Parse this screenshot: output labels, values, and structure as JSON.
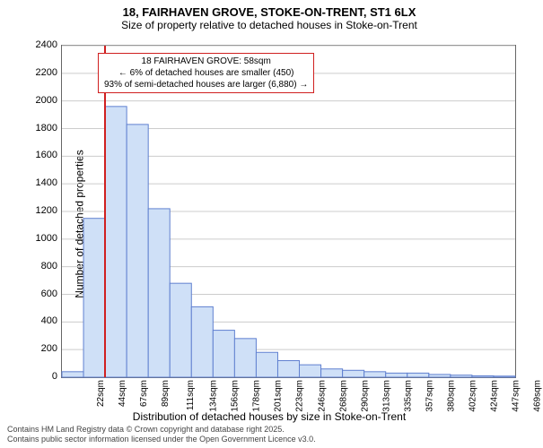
{
  "title": "18, FAIRHAVEN GROVE, STOKE-ON-TRENT, ST1 6LX",
  "subtitle": "Size of property relative to detached houses in Stoke-on-Trent",
  "chart": {
    "type": "histogram",
    "ylabel": "Number of detached properties",
    "xlabel": "Distribution of detached houses by size in Stoke-on-Trent",
    "ylim": [
      0,
      2400
    ],
    "ytick_step": 200,
    "yticks": [
      0,
      200,
      400,
      600,
      800,
      1000,
      1200,
      1400,
      1600,
      1800,
      2000,
      2200,
      2400
    ],
    "xticks": [
      "22sqm",
      "44sqm",
      "67sqm",
      "89sqm",
      "111sqm",
      "134sqm",
      "156sqm",
      "178sqm",
      "201sqm",
      "223sqm",
      "246sqm",
      "268sqm",
      "290sqm",
      "313sqm",
      "335sqm",
      "357sqm",
      "380sqm",
      "402sqm",
      "424sqm",
      "447sqm",
      "469sqm"
    ],
    "values": [
      40,
      1150,
      1960,
      1830,
      1220,
      680,
      510,
      340,
      280,
      180,
      120,
      90,
      60,
      50,
      40,
      30,
      30,
      20,
      15,
      10,
      8
    ],
    "bar_fill": "#cfe0f7",
    "bar_stroke": "#6080d0",
    "grid_color": "#cccccc",
    "background_color": "#ffffff",
    "marker_color": "#d02020",
    "marker_x_index": 2
  },
  "annotation": {
    "line1": "18 FAIRHAVEN GROVE: 58sqm",
    "line2": "← 6% of detached houses are smaller (450)",
    "line3": "93% of semi-detached houses are larger (6,880) →"
  },
  "footer": {
    "line1": "Contains HM Land Registry data © Crown copyright and database right 2025.",
    "line2": "Contains public sector information licensed under the Open Government Licence v3.0."
  }
}
